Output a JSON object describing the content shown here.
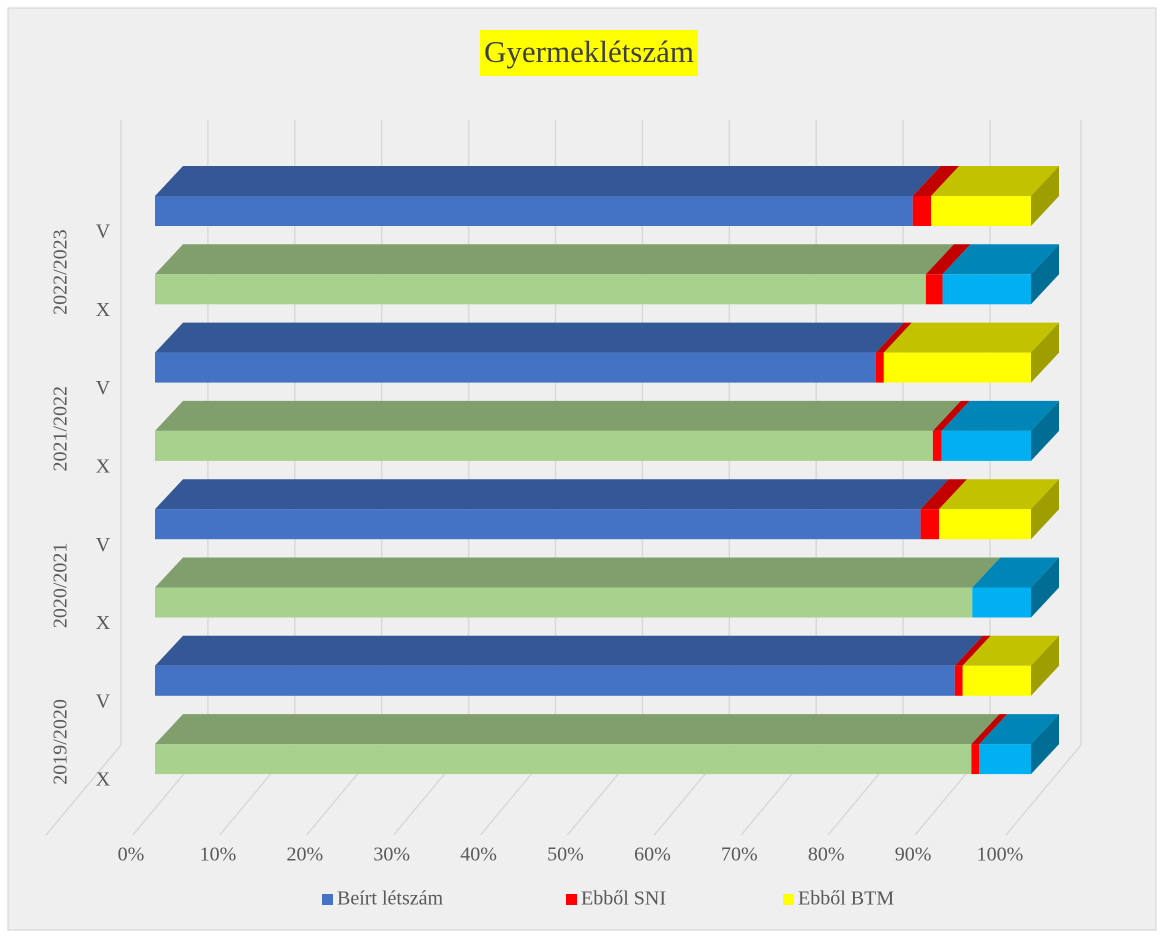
{
  "chart_data": {
    "type": "bar3d_stacked_horizontal",
    "title": "Gyermeklétszám",
    "categories": [
      "V",
      "X",
      "V",
      "X",
      "V",
      "X",
      "V",
      "X"
    ],
    "category_groups": [
      "2022/2023",
      "2021/2022",
      "2020/2021",
      "2019/2020"
    ],
    "series": [
      {
        "name": "Beírt létszám",
        "color": "#4472c4",
        "colors": [
          "#4472c4",
          "#a9d18e",
          "#4472c4",
          "#a9d18e",
          "#4472c4",
          "#a9d18e",
          "#4472c4",
          "#a9d18e"
        ],
        "values": [
          86.5,
          88.0,
          82.3,
          88.8,
          87.4,
          93.3,
          91.3,
          93.2
        ]
      },
      {
        "name": "Ebből SNI",
        "color": "#ff0000",
        "colors": [
          "#ff0000",
          "#ff0000",
          "#ff0000",
          "#ff0000",
          "#ff0000",
          "#ff0000",
          "#ff0000",
          "#ff0000"
        ],
        "values": [
          2.1,
          1.9,
          0.9,
          1.0,
          2.1,
          0,
          0.9,
          0.9
        ]
      },
      {
        "name": "Ebből BTM",
        "color": "#ffff00",
        "colors": [
          "#ffff00",
          "#00b0f0",
          "#ffff00",
          "#00b0f0",
          "#ffff00",
          "#00b0f0",
          "#ffff00",
          "#00b0f0"
        ],
        "values": [
          11.4,
          10.1,
          16.8,
          10.2,
          10.5,
          6.7,
          7.8,
          5.9
        ]
      }
    ],
    "xlim": [
      0,
      100
    ],
    "xticks": [
      {
        "value": 0,
        "label": "0%"
      },
      {
        "value": 10,
        "label": "10%"
      },
      {
        "value": 20,
        "label": "20%"
      },
      {
        "value": 30,
        "label": "30%"
      },
      {
        "value": 40,
        "label": "40%"
      },
      {
        "value": 50,
        "label": "50%"
      },
      {
        "value": 60,
        "label": "60%"
      },
      {
        "value": 70,
        "label": "70%"
      },
      {
        "value": 80,
        "label": "80%"
      },
      {
        "value": 90,
        "label": "90%"
      },
      {
        "value": 100,
        "label": "100%"
      }
    ],
    "grid": true,
    "legend": "bottom"
  }
}
